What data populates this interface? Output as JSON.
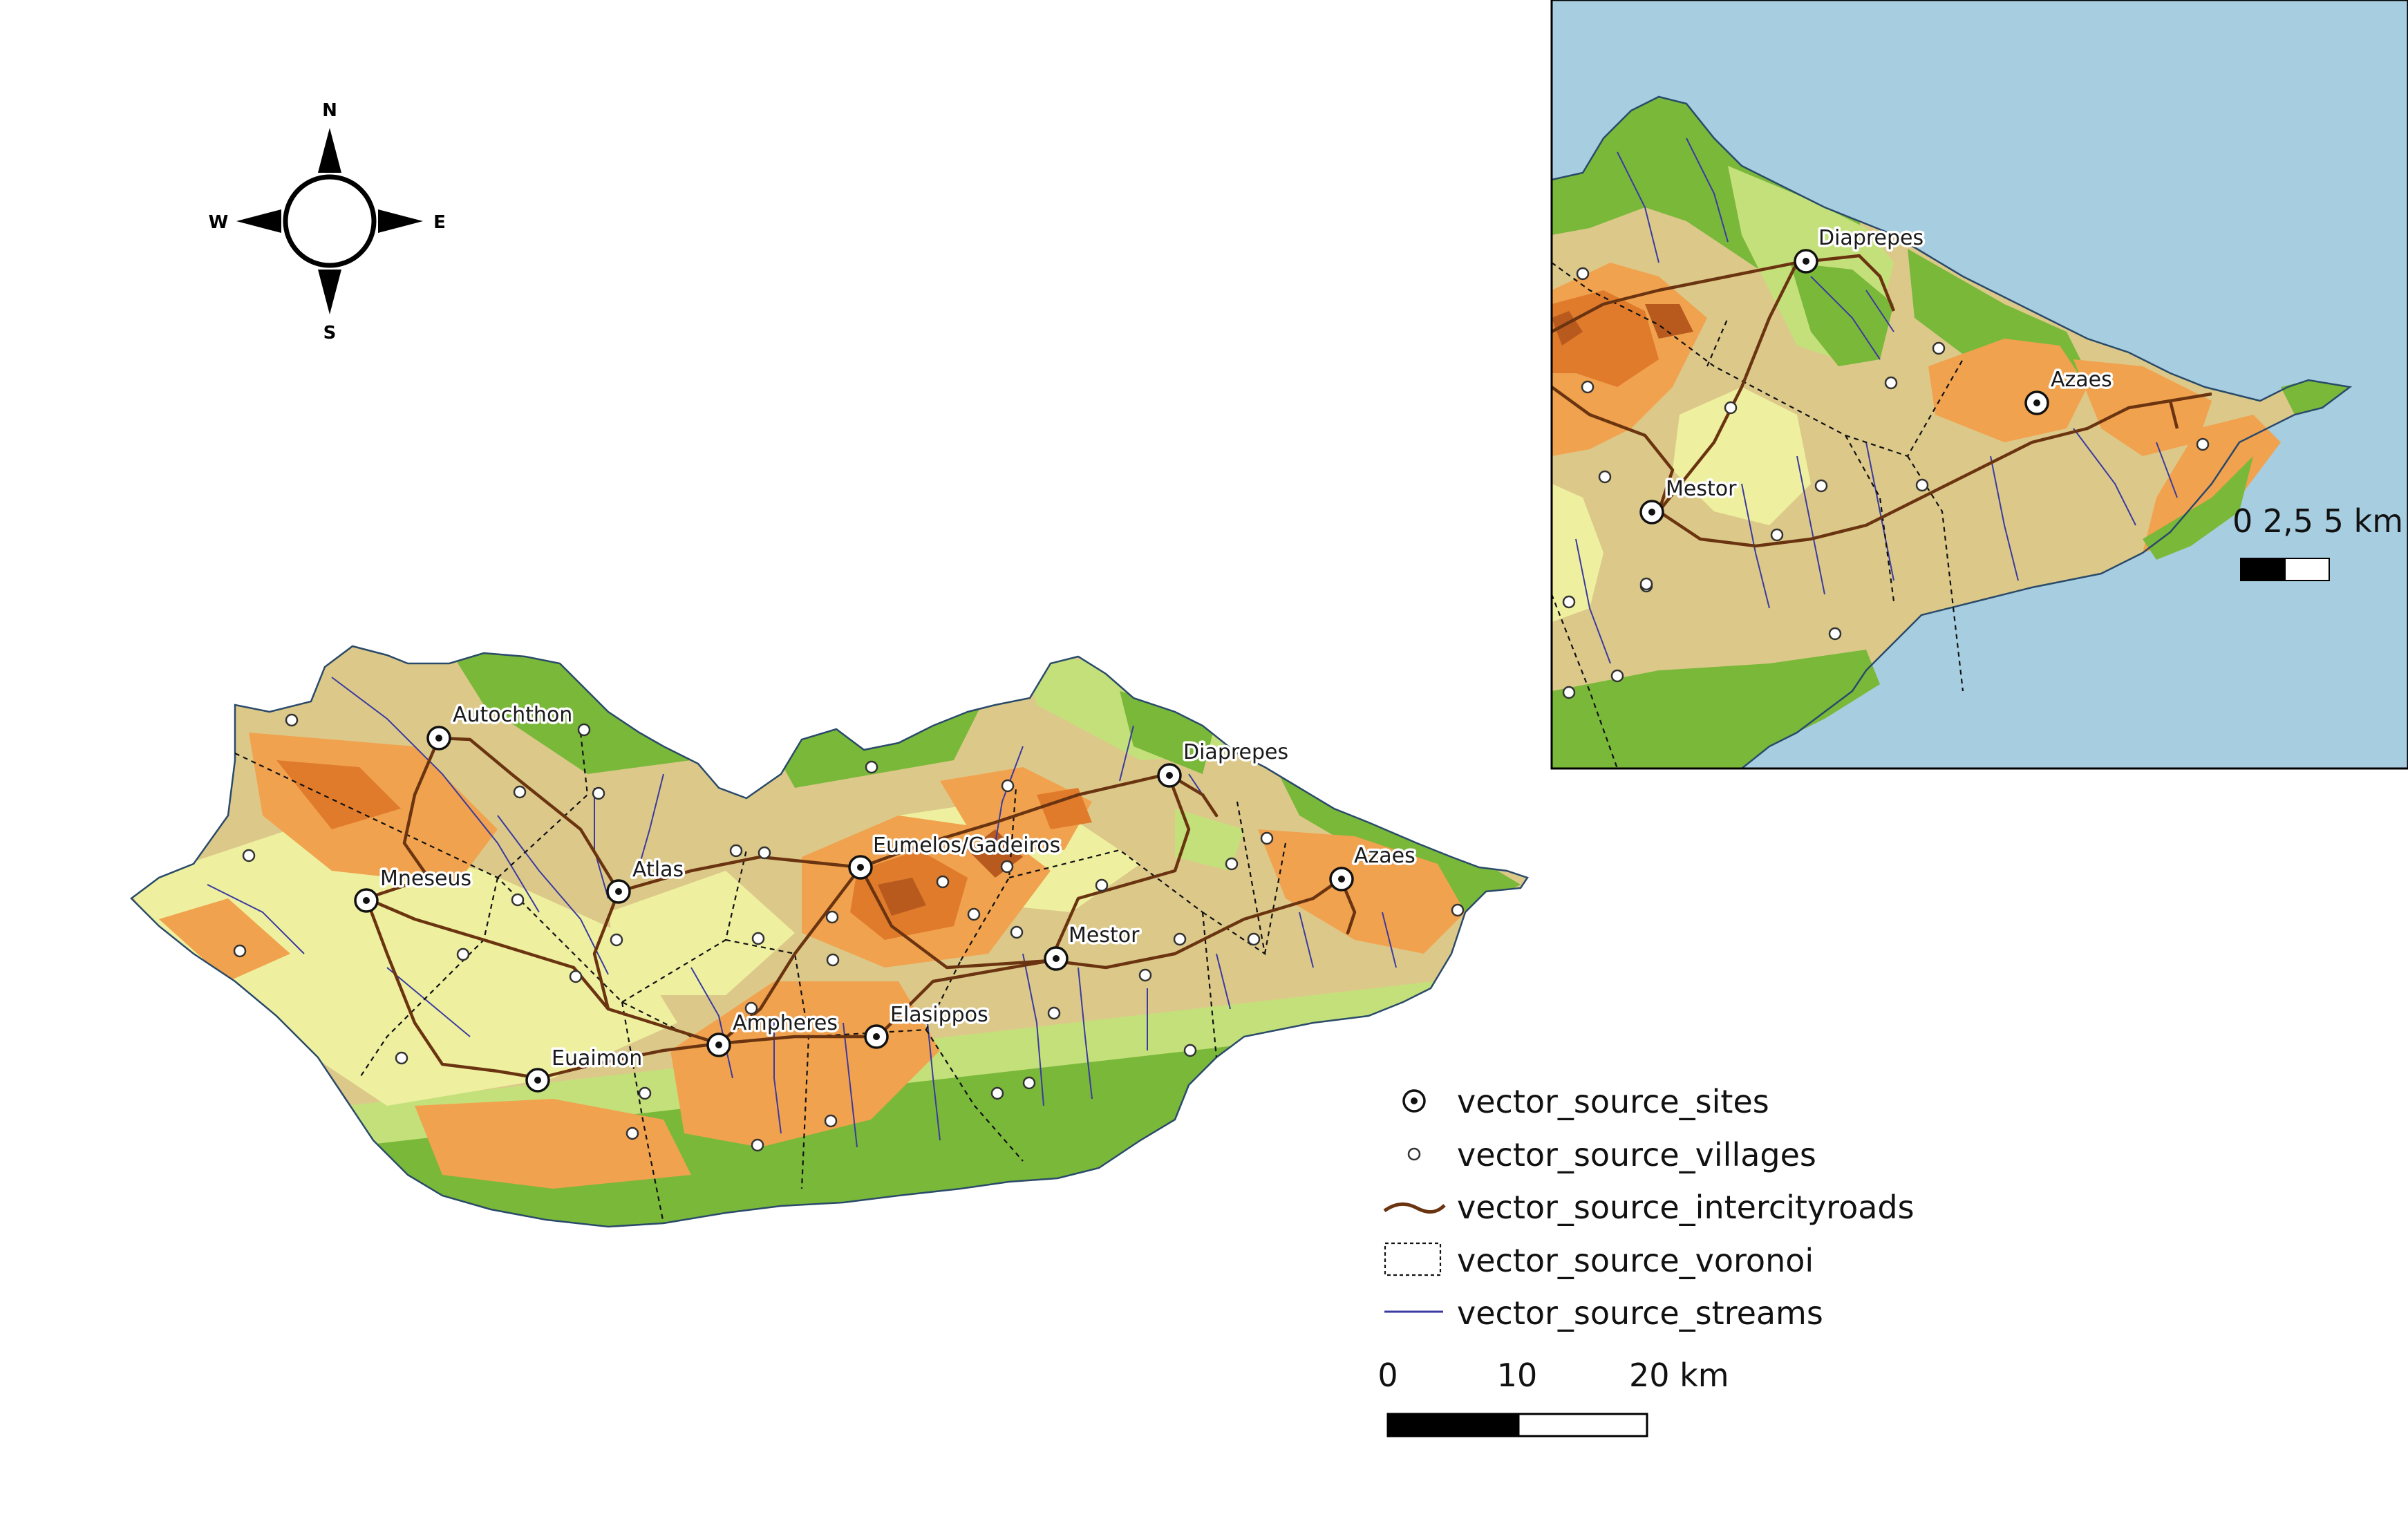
{
  "compass": {
    "north": "N",
    "south": "S",
    "east": "E",
    "west": "W"
  },
  "sites": [
    {
      "name": "Autochthon"
    },
    {
      "name": "Mneseus"
    },
    {
      "name": "Atlas"
    },
    {
      "name": "Eumelos/Gadeiros"
    },
    {
      "name": "Diaprepes"
    },
    {
      "name": "Azaes"
    },
    {
      "name": "Mestor"
    },
    {
      "name": "Ampheres"
    },
    {
      "name": "Elasippos"
    },
    {
      "name": "Euaimon"
    }
  ],
  "inset": {
    "sites": [
      {
        "name": "Diaprepes"
      },
      {
        "name": "Azaes"
      },
      {
        "name": "Mestor"
      }
    ],
    "scale": {
      "label": "0 2,5 5 km"
    }
  },
  "legend": {
    "items": [
      {
        "label": "vector_source_sites",
        "symbol": "site"
      },
      {
        "label": "vector_source_villages",
        "symbol": "village"
      },
      {
        "label": "vector_source_intercityroads",
        "symbol": "road"
      },
      {
        "label": "vector_source_voronoi",
        "symbol": "voronoi"
      },
      {
        "label": "vector_source_streams",
        "symbol": "stream"
      }
    ]
  },
  "scalebar": {
    "ticks": [
      "0",
      "10",
      "20 km"
    ]
  },
  "colors": {
    "sea": "#a7cde0",
    "lowland_green": "#7ab83a",
    "light_green": "#c4e07a",
    "yellow": "#eef0a0",
    "tan": "#dcc98a",
    "orange": "#f1a24e",
    "dark_orange": "#e07b2c",
    "brown": "#b85a1e",
    "road": "#6b3410",
    "stream": "#3a3aa0",
    "voronoi": "#111111"
  }
}
